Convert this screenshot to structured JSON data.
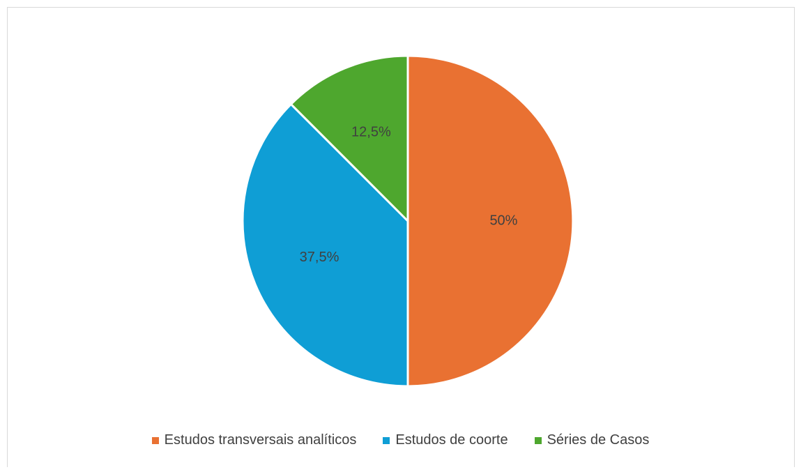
{
  "chart_data": {
    "type": "pie",
    "categories": [
      "Estudos transversais analíticos",
      "Estudos de coorte",
      "Séries de Casos"
    ],
    "values": [
      50,
      37.5,
      12.5
    ],
    "data_labels": [
      "50%",
      "37,5%",
      "12,5%"
    ],
    "colors": [
      "#E97132",
      "#0F9ED5",
      "#4EA72E"
    ],
    "title": "",
    "legend_position": "bottom"
  }
}
